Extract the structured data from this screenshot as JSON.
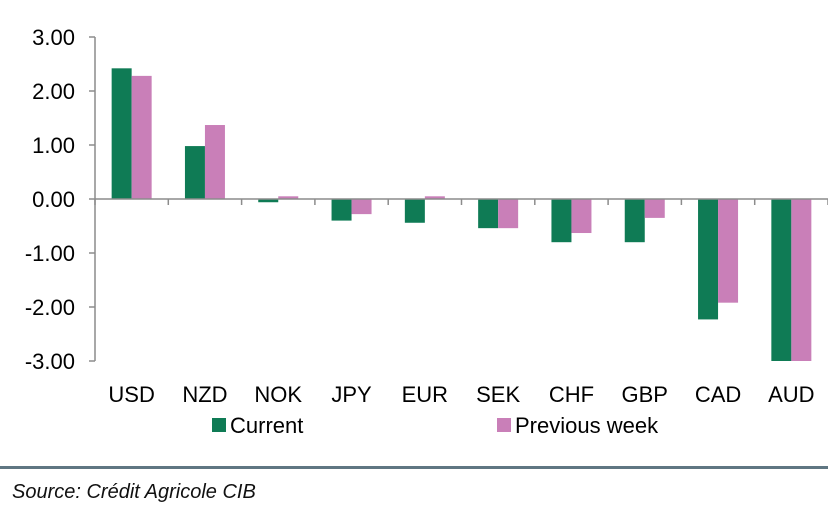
{
  "chart_data": {
    "type": "bar",
    "title": "",
    "xlabel": "",
    "ylabel": "",
    "ylim": [
      -3.0,
      3.0
    ],
    "y_ticks": [
      "3.00",
      "2.00",
      "1.00",
      "0.00",
      "-1.00",
      "-2.00",
      "-3.00"
    ],
    "categories": [
      "USD",
      "NZD",
      "NOK",
      "JPY",
      "EUR",
      "SEK",
      "CHF",
      "GBP",
      "CAD",
      "AUD"
    ],
    "series": [
      {
        "name": "Current",
        "color": "#0f7b55",
        "values": [
          2.42,
          0.98,
          -0.06,
          -0.4,
          -0.44,
          -0.54,
          -0.8,
          -0.8,
          -2.23,
          -3.0
        ]
      },
      {
        "name": "Previous week",
        "color": "#c97fb8",
        "values": [
          2.28,
          1.37,
          0.05,
          -0.28,
          0.05,
          -0.54,
          -0.63,
          -0.35,
          -1.92,
          -3.0
        ]
      }
    ],
    "legend_position": "bottom",
    "grid": false
  },
  "footer": {
    "source": "Source: Crédit Agricole CIB"
  }
}
